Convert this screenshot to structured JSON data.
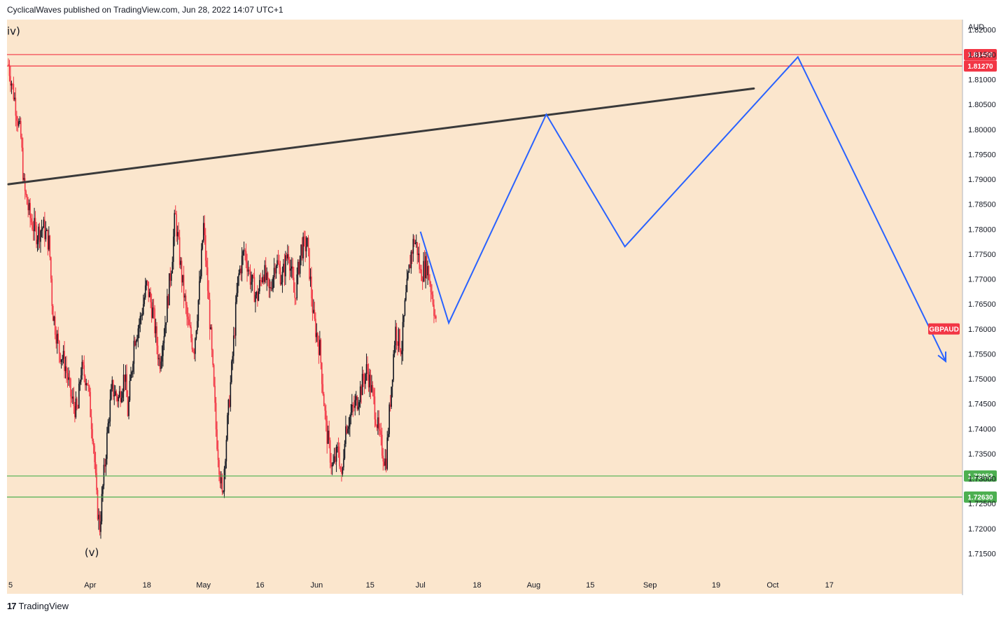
{
  "header": {
    "publisher": "CyclicalWaves published on TradingView.com, Jun 28, 2022 14:07 UTC+1"
  },
  "footer": {
    "logo_glyph": "17",
    "brand": "TradingView"
  },
  "colors": {
    "background": "#fbe6cd",
    "resistance": "#f23645",
    "support": "#4caf50",
    "projection": "#2962ff",
    "trendline": "#3a3a3a",
    "candle_up": "#131722",
    "candle_down": "#f23645"
  },
  "chart_data": {
    "type": "candlestick",
    "symbol": "GBPAUD",
    "currency": "AUD",
    "ylim": [
      1.71,
      1.822
    ],
    "y_ticks": [
      "1.71500",
      "1.72000",
      "1.72500",
      "1.73000",
      "1.73500",
      "1.74000",
      "1.74500",
      "1.75000",
      "1.75500",
      "1.76000",
      "1.76500",
      "1.77000",
      "1.77500",
      "1.78000",
      "1.78500",
      "1.79000",
      "1.79500",
      "1.80000",
      "1.80500",
      "1.81000",
      "1.81500",
      "1.82000"
    ],
    "x_ticks": [
      "5",
      "Apr",
      "18",
      "May",
      "16",
      "Jun",
      "15",
      "Jul",
      "18",
      "Aug",
      "15",
      "Sep",
      "19",
      "Oct",
      "17"
    ],
    "x_tick_days": [
      0,
      26,
      44,
      62,
      80,
      98,
      115,
      131,
      149,
      167,
      185,
      204,
      225,
      243,
      261
    ],
    "x_range_days": [
      0,
      300
    ],
    "price_tags": [
      {
        "label": "1.81499",
        "value": 1.81499,
        "kind": "resistance"
      },
      {
        "label": "1.81270",
        "value": 1.8127,
        "kind": "resistance"
      },
      {
        "label": "1.73052",
        "value": 1.73052,
        "kind": "support"
      },
      {
        "label": "1.72630",
        "value": 1.7263,
        "kind": "support"
      }
    ],
    "symbol_tag": {
      "label": "GBPAUD",
      "value": 1.76
    },
    "wave_labels": [
      {
        "text": "iv)",
        "day": 0,
        "value": 1.819
      },
      {
        "text": "(v)",
        "day": 26,
        "value": 1.7145
      }
    ],
    "trendline": [
      [
        0,
        1.789
      ],
      [
        237,
        1.8082
      ]
    ],
    "projection": [
      [
        131,
        1.7795
      ],
      [
        140,
        1.7612
      ],
      [
        171,
        1.803
      ],
      [
        196,
        1.7765
      ],
      [
        251,
        1.8145
      ],
      [
        298,
        1.7535
      ]
    ],
    "price_path": [
      [
        0,
        1.813
      ],
      [
        2,
        1.806
      ],
      [
        4,
        1.798
      ],
      [
        5,
        1.788
      ],
      [
        7,
        1.782
      ],
      [
        9,
        1.779
      ],
      [
        11,
        1.7805
      ],
      [
        13,
        1.777
      ],
      [
        14,
        1.764
      ],
      [
        16,
        1.756
      ],
      [
        18,
        1.753
      ],
      [
        20,
        1.746
      ],
      [
        22,
        1.743
      ],
      [
        23,
        1.752
      ],
      [
        25,
        1.75
      ],
      [
        27,
        1.738
      ],
      [
        28,
        1.726
      ],
      [
        29,
        1.72
      ],
      [
        30,
        1.728
      ],
      [
        32,
        1.743
      ],
      [
        33,
        1.748
      ],
      [
        35,
        1.746
      ],
      [
        37,
        1.751
      ],
      [
        38,
        1.743
      ],
      [
        40,
        1.758
      ],
      [
        42,
        1.762
      ],
      [
        44,
        1.769
      ],
      [
        46,
        1.763
      ],
      [
        48,
        1.753
      ],
      [
        50,
        1.762
      ],
      [
        52,
        1.774
      ],
      [
        53,
        1.783
      ],
      [
        55,
        1.771
      ],
      [
        57,
        1.761
      ],
      [
        59,
        1.756
      ],
      [
        61,
        1.77
      ],
      [
        62,
        1.781
      ],
      [
        64,
        1.762
      ],
      [
        66,
        1.74
      ],
      [
        68,
        1.726
      ],
      [
        69,
        1.736
      ],
      [
        71,
        1.752
      ],
      [
        73,
        1.77
      ],
      [
        75,
        1.776
      ],
      [
        77,
        1.77
      ],
      [
        79,
        1.766
      ],
      [
        81,
        1.772
      ],
      [
        83,
        1.767
      ],
      [
        85,
        1.774
      ],
      [
        87,
        1.77
      ],
      [
        89,
        1.776
      ],
      [
        91,
        1.766
      ],
      [
        93,
        1.776
      ],
      [
        95,
        1.777
      ],
      [
        97,
        1.762
      ],
      [
        99,
        1.756
      ],
      [
        101,
        1.74
      ],
      [
        103,
        1.732
      ],
      [
        105,
        1.736
      ],
      [
        106,
        1.729
      ],
      [
        107,
        1.74
      ],
      [
        109,
        1.743
      ],
      [
        111,
        1.746
      ],
      [
        113,
        1.75
      ],
      [
        114,
        1.752
      ],
      [
        116,
        1.746
      ],
      [
        118,
        1.738
      ],
      [
        120,
        1.733
      ],
      [
        121,
        1.742
      ],
      [
        123,
        1.76
      ],
      [
        125,
        1.756
      ],
      [
        126,
        1.764
      ],
      [
        128,
        1.775
      ],
      [
        129,
        1.778
      ],
      [
        130,
        1.776
      ],
      [
        131,
        1.771
      ],
      [
        133,
        1.773
      ],
      [
        135,
        1.766
      ],
      [
        136,
        1.7605
      ]
    ]
  }
}
